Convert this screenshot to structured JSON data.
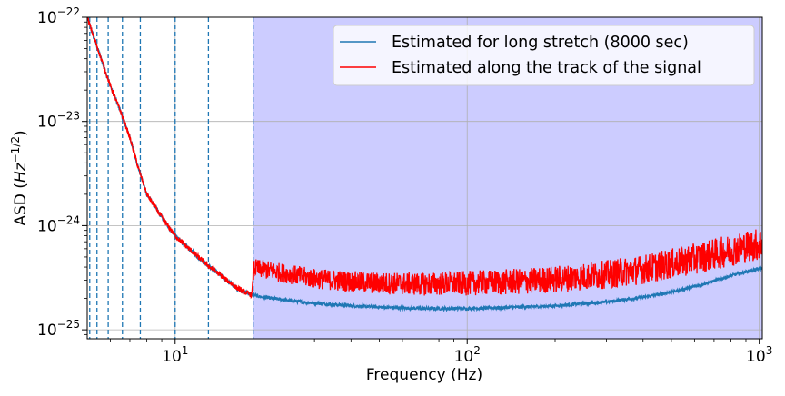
{
  "chart_data": {
    "type": "line",
    "xlabel": "Frequency (Hz)",
    "ylabel_main": "ASD (",
    "ylabel_unit": "Hz",
    "ylabel_exp": "−1/2",
    "ylabel_close": ")",
    "x_scale": "log",
    "y_scale": "log",
    "xlim": [
      5,
      1024
    ],
    "ylim": [
      8.2e-26,
      1e-22
    ],
    "grid": true,
    "legend_position": "top-right",
    "x_ticks": [
      {
        "value": 10,
        "base": "10",
        "exp": "1"
      },
      {
        "value": 100,
        "base": "10",
        "exp": "2"
      },
      {
        "value": 1000,
        "base": "10",
        "exp": "3"
      }
    ],
    "y_ticks": [
      {
        "value": 1e-22,
        "base": "10",
        "exp": "−22"
      },
      {
        "value": 1e-23,
        "base": "10",
        "exp": "−23"
      },
      {
        "value": 1e-24,
        "base": "10",
        "exp": "−24"
      },
      {
        "value": 1e-25,
        "base": "10",
        "exp": "−25"
      }
    ],
    "shaded_region": {
      "x_start": 18.5,
      "x_end": 1024,
      "color": "#ccccff"
    },
    "vertical_dashed_lines": [
      5.1,
      5.4,
      5.9,
      6.6,
      7.6,
      10,
      13,
      18.5
    ],
    "series": [
      {
        "name": "Estimated for long stretch (8000 sec)",
        "color": "#1f77b4",
        "points": [
          [
            5.0,
            1e-22
          ],
          [
            5.5,
            4.5e-23
          ],
          [
            6.0,
            2.2e-23
          ],
          [
            6.5,
            1.25e-23
          ],
          [
            7.0,
            7e-24
          ],
          [
            7.5,
            3.5e-24
          ],
          [
            8.0,
            2e-24
          ],
          [
            9.0,
            1.2e-24
          ],
          [
            10.0,
            8e-25
          ],
          [
            11.0,
            6.2e-25
          ],
          [
            12.0,
            5e-25
          ],
          [
            13.0,
            4.1e-25
          ],
          [
            14.0,
            3.5e-25
          ],
          [
            15.0,
            3e-25
          ],
          [
            16.0,
            2.6e-25
          ],
          [
            17.0,
            2.35e-25
          ],
          [
            18.5,
            2.15e-25
          ],
          [
            20.0,
            2.05e-25
          ],
          [
            25.0,
            1.9e-25
          ],
          [
            30.0,
            1.8e-25
          ],
          [
            40.0,
            1.7e-25
          ],
          [
            50.0,
            1.65e-25
          ],
          [
            70.0,
            1.6e-25
          ],
          [
            100.0,
            1.6e-25
          ],
          [
            150.0,
            1.65e-25
          ],
          [
            200.0,
            1.7e-25
          ],
          [
            300.0,
            1.85e-25
          ],
          [
            400.0,
            2.05e-25
          ],
          [
            500.0,
            2.3e-25
          ],
          [
            600.0,
            2.6e-25
          ],
          [
            700.0,
            2.95e-25
          ],
          [
            800.0,
            3.3e-25
          ],
          [
            900.0,
            3.6e-25
          ],
          [
            1024.0,
            3.9e-25
          ]
        ]
      },
      {
        "name": "Estimated along the track of the signal",
        "color": "#ff0000",
        "points": [
          [
            5.0,
            1e-22
          ],
          [
            5.5,
            4.5e-23
          ],
          [
            6.0,
            2.2e-23
          ],
          [
            6.5,
            1.25e-23
          ],
          [
            7.0,
            7e-24
          ],
          [
            7.5,
            3.5e-24
          ],
          [
            8.0,
            2e-24
          ],
          [
            9.0,
            1.2e-24
          ],
          [
            10.0,
            8e-25
          ],
          [
            11.0,
            6.2e-25
          ],
          [
            12.0,
            5e-25
          ],
          [
            13.0,
            4.1e-25
          ],
          [
            14.0,
            3.5e-25
          ],
          [
            15.0,
            3e-25
          ],
          [
            16.0,
            2.6e-25
          ],
          [
            17.0,
            2.35e-25
          ],
          [
            18.3,
            2.15e-25
          ],
          [
            18.6,
            3.9e-25
          ],
          [
            20.0,
            3.8e-25
          ],
          [
            25.0,
            3.4e-25
          ],
          [
            30.0,
            3.1e-25
          ],
          [
            40.0,
            2.9e-25
          ],
          [
            50.0,
            2.8e-25
          ],
          [
            70.0,
            2.75e-25
          ],
          [
            100.0,
            2.8e-25
          ],
          [
            150.0,
            2.9e-25
          ],
          [
            200.0,
            3.05e-25
          ],
          [
            300.0,
            3.4e-25
          ],
          [
            400.0,
            3.8e-25
          ],
          [
            500.0,
            4.3e-25
          ],
          [
            600.0,
            4.8e-25
          ],
          [
            700.0,
            5.3e-25
          ],
          [
            800.0,
            5.8e-25
          ],
          [
            900.0,
            6.3e-25
          ],
          [
            1024.0,
            6.7e-25
          ]
        ]
      }
    ]
  }
}
